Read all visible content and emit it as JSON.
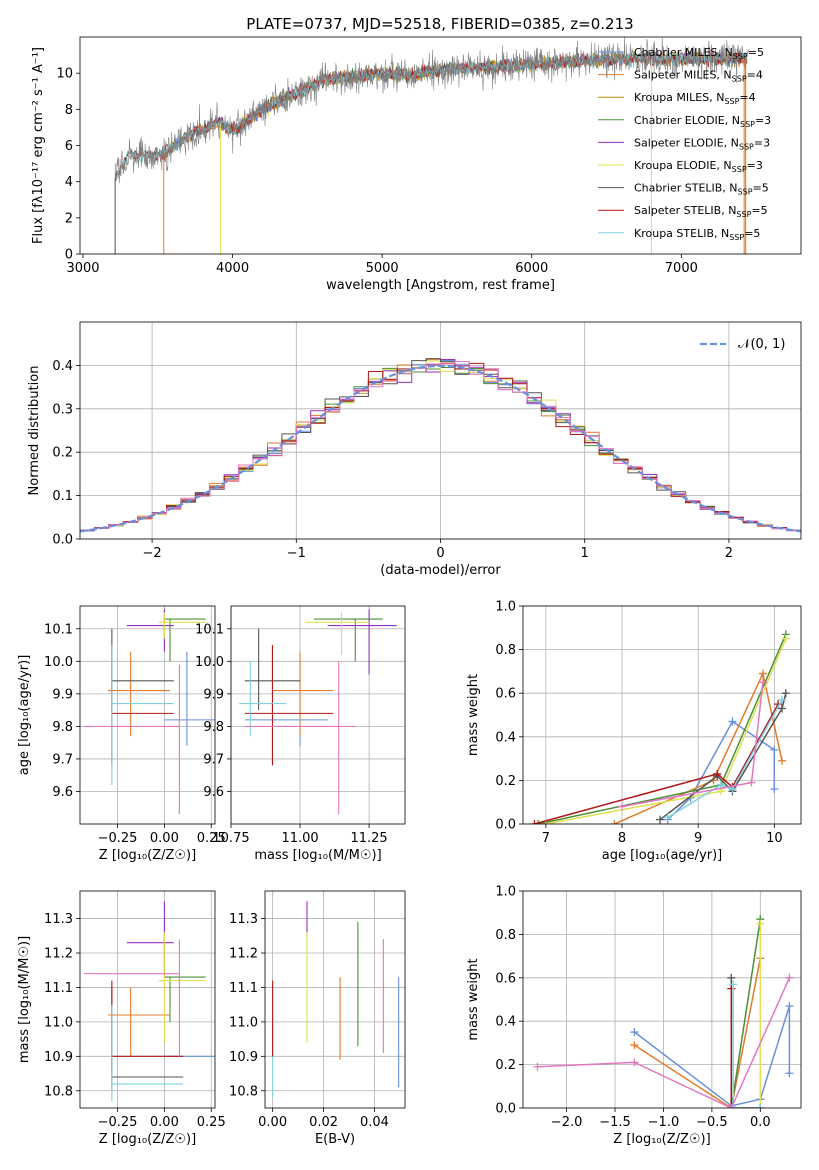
{
  "title": "PLATE=0737, MJD=52518, FIBERID=0385, z=0.213",
  "colors": {
    "Chabrier MILES": "#6a8fdc",
    "Salpeter MILES": "#e37b2c",
    "Kroupa MILES": "#b8860b",
    "Chabrier ELODIE": "#4a8f3a",
    "Salpeter ELODIE": "#9a2fbf",
    "Kroupa ELODIE": "#e0e050",
    "Chabrier STELIB": "#555555",
    "Salpeter STELIB": "#b01515",
    "Kroupa STELIB": "#7fd3e0",
    "pink": "#e377c2",
    "olive": "#bcbd22"
  },
  "chart_data": [
    {
      "type": "line",
      "id": "spectrum",
      "xlabel": "wavelength [Angstrom, rest frame]",
      "ylabel": "Flux [fλ10⁻¹⁷ erg cm⁻² s⁻¹ A⁻¹]",
      "xlim": [
        2980,
        7800
      ],
      "ylim": [
        0,
        12
      ],
      "xticks": [
        3000,
        4000,
        5000,
        6000,
        7000
      ],
      "yticks": [
        0,
        2,
        4,
        6,
        8,
        10
      ],
      "observed_start": 3215,
      "envelope": [
        [
          3215,
          4.2
        ],
        [
          3300,
          5.5
        ],
        [
          3500,
          5.4
        ],
        [
          3700,
          6.5
        ],
        [
          3900,
          7.3
        ],
        [
          4000,
          6.8
        ],
        [
          4200,
          8.0
        ],
        [
          4400,
          8.8
        ],
        [
          4600,
          9.6
        ],
        [
          4800,
          9.8
        ],
        [
          5000,
          10.0
        ],
        [
          5200,
          9.9
        ],
        [
          5400,
          10.2
        ],
        [
          5600,
          10.3
        ],
        [
          5800,
          10.4
        ],
        [
          6000,
          10.5
        ],
        [
          6200,
          10.6
        ],
        [
          6400,
          10.7
        ],
        [
          6600,
          10.8
        ],
        [
          6800,
          10.8
        ],
        [
          7000,
          10.8
        ],
        [
          7200,
          10.8
        ],
        [
          7450,
          10.8
        ]
      ],
      "model_starts": [
        [
          3215,
          "Kroupa STELIB"
        ],
        [
          3540,
          "Salpeter MILES"
        ],
        [
          3540,
          "Chabrier MILES"
        ],
        [
          3540,
          "Kroupa MILES"
        ],
        [
          3920,
          "Kroupa ELODIE"
        ],
        [
          3920,
          "Chabrier ELODIE"
        ],
        [
          3920,
          "Salpeter ELODIE"
        ]
      ],
      "cutoff_lines": [
        [
          3215,
          "Chabrier STELIB"
        ],
        [
          3540,
          "Salpeter MILES"
        ],
        [
          3920,
          "Kroupa ELODIE"
        ],
        [
          6800,
          "Kroupa ELODIE"
        ],
        [
          7420,
          "Salpeter MILES"
        ],
        [
          7430,
          "Kroupa MILES"
        ]
      ],
      "legend": [
        {
          "name": "Chabrier MILES, N",
          "sub": "SSP",
          "tail": "=5"
        },
        {
          "name": "Salpeter MILES, N",
          "sub": "SSP",
          "tail": "=4"
        },
        {
          "name": "Kroupa MILES, N",
          "sub": "SSP",
          "tail": "=4"
        },
        {
          "name": "Chabrier ELODIE, N",
          "sub": "SSP",
          "tail": "=3"
        },
        {
          "name": "Salpeter ELODIE, N",
          "sub": "SSP",
          "tail": "=3"
        },
        {
          "name": "Kroupa ELODIE, N",
          "sub": "SSP",
          "tail": "=3"
        },
        {
          "name": "Chabrier STELIB, N",
          "sub": "SSP",
          "tail": "=5"
        },
        {
          "name": "Salpeter STELIB, N",
          "sub": "SSP",
          "tail": "=5"
        },
        {
          "name": "Kroupa STELIB, N",
          "sub": "SSP",
          "tail": "=5"
        }
      ],
      "legend_placement": "right"
    },
    {
      "type": "bar",
      "id": "residuals",
      "xlabel": "(data-model)/error",
      "ylabel": "Normed distribution",
      "xlim": [
        -2.5,
        2.5
      ],
      "ylim": [
        0,
        0.5
      ],
      "xticks": [
        -2,
        -1,
        0,
        1,
        2
      ],
      "yticks": [
        0.0,
        0.1,
        0.2,
        0.3,
        0.4
      ],
      "grid": true,
      "bin_width": 0.1,
      "legend": "𝒩(0, 1)",
      "legend_placement": "top-right"
    },
    {
      "type": "scatter",
      "id": "age_vs_Z",
      "xlabel": "Z [log₁₀(Z/Z☉)]",
      "ylabel": "age  [log₁₀(age/yr)]",
      "xlim": [
        -0.45,
        0.27
      ],
      "ylim": [
        9.5,
        10.17
      ],
      "xticks": [
        -0.25,
        0.0,
        0.25
      ],
      "yticks": [
        9.6,
        9.7,
        9.8,
        9.9,
        10.0,
        10.1
      ],
      "grid": true,
      "errorbars": [
        {
          "c": "Chabrier MILES",
          "x": 0.12,
          "xe": [
            0.0,
            0.3
          ],
          "y": 9.82,
          "ye": [
            9.74,
            10.03
          ]
        },
        {
          "c": "Salpeter MILES",
          "x": -0.18,
          "xe": [
            -0.3,
            0.03
          ],
          "y": 9.91,
          "ye": [
            9.77,
            10.03
          ]
        },
        {
          "c": "Chabrier ELODIE",
          "x": 0.03,
          "xe": [
            0.0,
            0.22
          ],
          "y": 10.13,
          "ye": [
            10.0,
            10.13
          ]
        },
        {
          "c": "Salpeter ELODIE",
          "x": 0.0,
          "xe": [
            -0.2,
            0.05
          ],
          "y": 10.11,
          "ye": [
            10.03,
            10.16
          ]
        },
        {
          "c": "Kroupa ELODIE",
          "x": 0.0,
          "xe": [
            -0.03,
            0.22
          ],
          "y": 10.12,
          "ye": [
            10.07,
            10.15
          ]
        },
        {
          "c": "Chabrier STELIB",
          "x": -0.28,
          "xe": [
            -0.28,
            0.05
          ],
          "y": 9.94,
          "ye": [
            9.85,
            10.1
          ]
        },
        {
          "c": "Salpeter STELIB",
          "x": -0.28,
          "xe": [
            -0.28,
            0.05
          ],
          "y": 9.84,
          "ye": [
            9.68,
            10.05
          ]
        },
        {
          "c": "Kroupa STELIB",
          "x": -0.28,
          "xe": [
            -0.28,
            0.05
          ],
          "y": 9.87,
          "ye": [
            9.62,
            10.05
          ]
        },
        {
          "c": "pink",
          "x": 0.08,
          "xe": [
            -0.43,
            0.08
          ],
          "y": 9.8,
          "ye": [
            9.53,
            9.99
          ]
        }
      ]
    },
    {
      "type": "scatter",
      "id": "age_vs_mass",
      "xlabel": "mass [log₁₀(M/M☉)]",
      "ylabel": "",
      "xlim": [
        10.75,
        11.38
      ],
      "ylim": [
        9.5,
        10.17
      ],
      "xticks": [
        10.75,
        11.0,
        11.25
      ],
      "yticks": [
        9.6,
        9.7,
        9.8,
        9.9,
        10.0,
        10.1
      ],
      "grid": true,
      "errorbars": [
        {
          "c": "Chabrier MILES",
          "x": 11.0,
          "xe": [
            10.8,
            11.1
          ],
          "y": 9.82,
          "ye": [
            9.74,
            10.0
          ]
        },
        {
          "c": "Salpeter MILES",
          "x": 11.0,
          "xe": [
            10.9,
            11.12
          ],
          "y": 9.91,
          "ye": [
            9.77,
            10.03
          ]
        },
        {
          "c": "Chabrier ELODIE",
          "x": 11.2,
          "xe": [
            11.05,
            11.3
          ],
          "y": 10.13,
          "ye": [
            10.0,
            10.13
          ]
        },
        {
          "c": "Salpeter ELODIE",
          "x": 11.25,
          "xe": [
            11.1,
            11.35
          ],
          "y": 10.11,
          "ye": [
            9.96,
            10.16
          ]
        },
        {
          "c": "Kroupa ELODIE",
          "x": 11.15,
          "xe": [
            11.02,
            11.25
          ],
          "y": 10.12,
          "ye": [
            10.02,
            10.15
          ]
        },
        {
          "c": "Chabrier STELIB",
          "x": 10.85,
          "xe": [
            10.8,
            11.0
          ],
          "y": 9.94,
          "ye": [
            9.85,
            10.1
          ]
        },
        {
          "c": "Salpeter STELIB",
          "x": 10.9,
          "xe": [
            10.8,
            11.12
          ],
          "y": 9.84,
          "ye": [
            9.68,
            10.05
          ]
        },
        {
          "c": "Kroupa STELIB",
          "x": 10.82,
          "xe": [
            10.78,
            10.95
          ],
          "y": 9.87,
          "ye": [
            9.77,
            10.0
          ]
        },
        {
          "c": "pink",
          "x": 11.14,
          "xe": [
            10.8,
            11.2
          ],
          "y": 9.8,
          "ye": [
            9.53,
            10.0
          ]
        }
      ]
    },
    {
      "type": "line",
      "id": "weight_vs_age",
      "xlabel": "age  [log₁₀(age/yr)]",
      "ylabel": "mass weight",
      "xlim": [
        6.7,
        10.35
      ],
      "ylim": [
        0,
        1.0
      ],
      "xticks": [
        7,
        8,
        9,
        10
      ],
      "yticks": [
        0.0,
        0.2,
        0.4,
        0.6,
        0.8,
        1.0
      ],
      "grid": true,
      "series": [
        {
          "c": "Chabrier MILES",
          "x": [
            8.6,
            8.9,
            9.45,
            10.0,
            10.0
          ],
          "y": [
            0.02,
            0.12,
            0.47,
            0.34,
            0.16
          ]
        },
        {
          "c": "Salpeter MILES",
          "x": [
            7.9,
            9.2,
            9.85,
            10.1
          ],
          "y": [
            0.0,
            0.2,
            0.69,
            0.29
          ]
        },
        {
          "c": "Chabrier ELODIE",
          "x": [
            6.9,
            9.3,
            10.15
          ],
          "y": [
            0.0,
            0.18,
            0.87
          ]
        },
        {
          "c": "Kroupa ELODIE",
          "x": [
            7.0,
            9.3,
            10.15
          ],
          "y": [
            0.0,
            0.15,
            0.85
          ]
        },
        {
          "c": "Chabrier STELIB",
          "x": [
            8.5,
            9.25,
            9.45,
            10.1,
            10.15
          ],
          "y": [
            0.02,
            0.22,
            0.15,
            0.53,
            0.6
          ]
        },
        {
          "c": "Salpeter STELIB",
          "x": [
            6.85,
            9.25,
            9.45,
            10.05
          ],
          "y": [
            0.0,
            0.23,
            0.17,
            0.55
          ]
        },
        {
          "c": "Kroupa STELIB",
          "x": [
            8.6,
            9.3,
            9.45,
            10.1
          ],
          "y": [
            0.03,
            0.18,
            0.16,
            0.57
          ]
        },
        {
          "c": "pink",
          "x": [
            8.0,
            9.7,
            9.85
          ],
          "y": [
            0.08,
            0.19,
            0.65
          ]
        }
      ]
    },
    {
      "type": "line",
      "id": "weight_vs_Z",
      "xlabel": "Z [log₁₀(Z/Z☉)]",
      "ylabel": "mass weight",
      "xlim": [
        -2.45,
        0.42
      ],
      "ylim": [
        0,
        1.0
      ],
      "xticks": [
        -2.0,
        -1.5,
        -1.0,
        -0.5,
        0.0
      ],
      "yticks": [
        0.0,
        0.2,
        0.4,
        0.6,
        0.8,
        1.0
      ],
      "grid": true,
      "series": [
        {
          "c": "Chabrier MILES",
          "x": [
            -1.3,
            -0.3,
            0.0,
            0.3,
            0.3
          ],
          "y": [
            0.35,
            0.01,
            0.04,
            0.47,
            0.16
          ]
        },
        {
          "c": "Salpeter MILES",
          "x": [
            -1.3,
            -0.3,
            0.0
          ],
          "y": [
            0.29,
            0.0,
            0.69
          ]
        },
        {
          "c": "Chabrier ELODIE",
          "x": [
            -0.3,
            0.0
          ],
          "y": [
            0.0,
            0.87
          ]
        },
        {
          "c": "Kroupa ELODIE",
          "x": [
            0.0,
            0.0
          ],
          "y": [
            0.0,
            0.85
          ]
        },
        {
          "c": "Chabrier STELIB",
          "x": [
            -0.3,
            -0.3,
            0.0
          ],
          "y": [
            0.6,
            0.0,
            0.0
          ]
        },
        {
          "c": "Salpeter STELIB",
          "x": [
            -0.3,
            -0.3,
            0.0
          ],
          "y": [
            0.55,
            0.0,
            0.0
          ]
        },
        {
          "c": "Kroupa STELIB",
          "x": [
            -0.28,
            -0.28,
            0.0
          ],
          "y": [
            0.57,
            0.0,
            0.0
          ]
        },
        {
          "c": "pink",
          "x": [
            -2.3,
            -1.3,
            -0.3,
            0.3
          ],
          "y": [
            0.19,
            0.21,
            0.0,
            0.6
          ]
        }
      ]
    },
    {
      "type": "scatter",
      "id": "mass_vs_Z",
      "xlabel": "Z [log₁₀(Z/Z☉)]",
      "ylabel": "mass [log₁₀(M/M☉)]",
      "xlim": [
        -0.45,
        0.27
      ],
      "ylim": [
        10.75,
        11.38
      ],
      "xticks": [
        -0.25,
        0.0,
        0.25
      ],
      "yticks": [
        10.8,
        10.9,
        11.0,
        11.1,
        11.2,
        11.3
      ],
      "grid": true,
      "errorbars": [
        {
          "c": "Chabrier MILES",
          "x": 0.15,
          "xe": [
            0.0,
            0.3
          ],
          "y": 10.9,
          "ye": [
            10.9,
            10.9
          ]
        },
        {
          "c": "Salpeter MILES",
          "x": -0.18,
          "xe": [
            -0.3,
            0.03
          ],
          "y": 11.02,
          "ye": [
            10.9,
            11.1
          ]
        },
        {
          "c": "Chabrier ELODIE",
          "x": 0.03,
          "xe": [
            0.0,
            0.22
          ],
          "y": 11.13,
          "ye": [
            11.0,
            11.13
          ]
        },
        {
          "c": "Salpeter ELODIE",
          "x": 0.0,
          "xe": [
            -0.2,
            0.05
          ],
          "y": 11.23,
          "ye": [
            11.13,
            11.35
          ]
        },
        {
          "c": "Kroupa ELODIE",
          "x": 0.0,
          "xe": [
            -0.03,
            0.22
          ],
          "y": 11.12,
          "ye": [
            10.94,
            11.26
          ]
        },
        {
          "c": "Chabrier STELIB",
          "x": -0.28,
          "xe": [
            -0.28,
            0.1
          ],
          "y": 10.84,
          "ye": [
            10.8,
            11.1
          ]
        },
        {
          "c": "Salpeter STELIB",
          "x": -0.28,
          "xe": [
            -0.28,
            0.1
          ],
          "y": 10.9,
          "ye": [
            10.85,
            11.12
          ]
        },
        {
          "c": "Kroupa STELIB",
          "x": -0.28,
          "xe": [
            -0.28,
            0.1
          ],
          "y": 10.82,
          "ye": [
            10.77,
            11.05
          ]
        },
        {
          "c": "pink",
          "x": 0.08,
          "xe": [
            -0.43,
            0.08
          ],
          "y": 11.14,
          "ye": [
            10.9,
            11.24
          ]
        }
      ]
    },
    {
      "type": "scatter",
      "id": "mass_vs_ebv",
      "xlabel": "E(B-V)",
      "ylabel": "",
      "xlim": [
        -0.003,
        0.052
      ],
      "ylim": [
        10.75,
        11.38
      ],
      "xticks": [
        0.0,
        0.02,
        0.04
      ],
      "yticks": [
        10.8,
        10.9,
        11.0,
        11.1,
        11.2,
        11.3
      ],
      "grid": true,
      "vlines": [
        {
          "c": "Kroupa STELIB",
          "x": 0.0,
          "y": [
            10.78,
            11.02
          ]
        },
        {
          "c": "Salpeter STELIB",
          "x": 0.0,
          "y": [
            10.9,
            11.12
          ]
        },
        {
          "c": "Salpeter ELODIE",
          "x": 0.0135,
          "y": [
            11.25,
            11.35
          ]
        },
        {
          "c": "Kroupa ELODIE",
          "x": 0.0135,
          "y": [
            10.94,
            11.26
          ]
        },
        {
          "c": "Salpeter MILES",
          "x": 0.0265,
          "y": [
            10.89,
            11.13
          ]
        },
        {
          "c": "Chabrier ELODIE",
          "x": 0.0335,
          "y": [
            10.93,
            11.29
          ]
        },
        {
          "c": "pink",
          "x": 0.0435,
          "y": [
            10.91,
            11.24
          ]
        },
        {
          "c": "Chabrier MILES",
          "x": 0.0495,
          "y": [
            10.81,
            11.13
          ]
        }
      ]
    }
  ]
}
